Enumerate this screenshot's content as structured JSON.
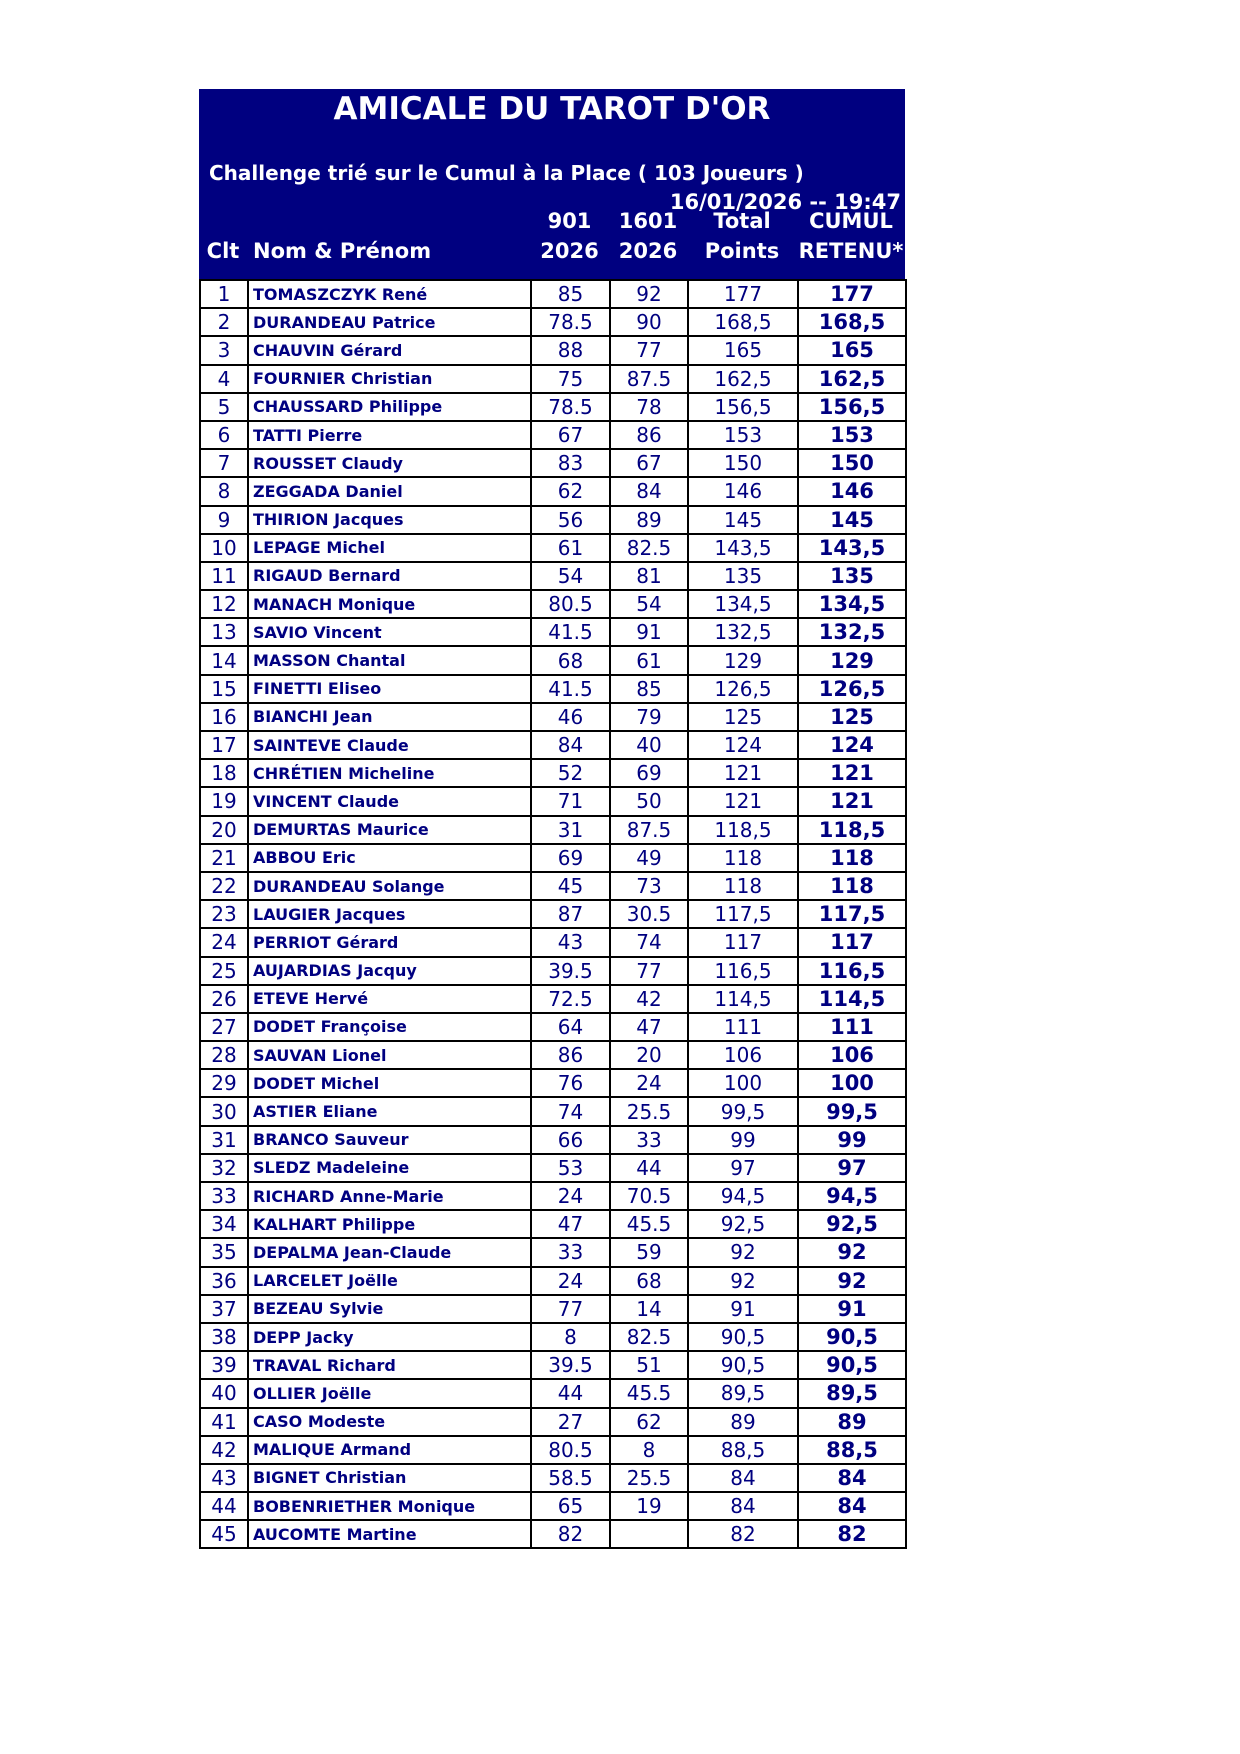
{
  "title": "AMICALE DU TAROT D'OR",
  "subtitle": "Challenge trié sur le Cumul à la Place ( 103 Joueurs )",
  "datetime": "16/01/2026 -- 19:47",
  "columns": {
    "rank": "Clt",
    "name": "Nom & Prénom",
    "c1_line1": "901",
    "c1_line2": "2026",
    "c2_line1": "1601",
    "c2_line2": "2026",
    "total_line1": "Total",
    "total_line2": "Points",
    "cumul_line1": "CUMUL",
    "cumul_line2": "RETENU*"
  },
  "rows": [
    [
      "1",
      "TOMASZCZYK René",
      "85",
      "92",
      "177",
      "177"
    ],
    [
      "2",
      "DURANDEAU Patrice",
      "78.5",
      "90",
      "168,5",
      "168,5"
    ],
    [
      "3",
      "CHAUVIN Gérard",
      "88",
      "77",
      "165",
      "165"
    ],
    [
      "4",
      "FOURNIER Christian",
      "75",
      "87.5",
      "162,5",
      "162,5"
    ],
    [
      "5",
      "CHAUSSARD Philippe",
      "78.5",
      "78",
      "156,5",
      "156,5"
    ],
    [
      "6",
      "TATTI Pierre",
      "67",
      "86",
      "153",
      "153"
    ],
    [
      "7",
      "ROUSSET Claudy",
      "83",
      "67",
      "150",
      "150"
    ],
    [
      "8",
      "ZEGGADA Daniel",
      "62",
      "84",
      "146",
      "146"
    ],
    [
      "9",
      "THIRION Jacques",
      "56",
      "89",
      "145",
      "145"
    ],
    [
      "10",
      "LEPAGE Michel",
      "61",
      "82.5",
      "143,5",
      "143,5"
    ],
    [
      "11",
      "RIGAUD Bernard",
      "54",
      "81",
      "135",
      "135"
    ],
    [
      "12",
      "MANACH Monique",
      "80.5",
      "54",
      "134,5",
      "134,5"
    ],
    [
      "13",
      "SAVIO Vincent",
      "41.5",
      "91",
      "132,5",
      "132,5"
    ],
    [
      "14",
      "MASSON Chantal",
      "68",
      "61",
      "129",
      "129"
    ],
    [
      "15",
      "FINETTI Eliseo",
      "41.5",
      "85",
      "126,5",
      "126,5"
    ],
    [
      "16",
      "BIANCHI Jean",
      "46",
      "79",
      "125",
      "125"
    ],
    [
      "17",
      "SAINTEVE Claude",
      "84",
      "40",
      "124",
      "124"
    ],
    [
      "18",
      "CHRÉTIEN Micheline",
      "52",
      "69",
      "121",
      "121"
    ],
    [
      "19",
      "VINCENT Claude",
      "71",
      "50",
      "121",
      "121"
    ],
    [
      "20",
      "DEMURTAS Maurice",
      "31",
      "87.5",
      "118,5",
      "118,5"
    ],
    [
      "21",
      "ABBOU Eric",
      "69",
      "49",
      "118",
      "118"
    ],
    [
      "22",
      "DURANDEAU Solange",
      "45",
      "73",
      "118",
      "118"
    ],
    [
      "23",
      "LAUGIER Jacques",
      "87",
      "30.5",
      "117,5",
      "117,5"
    ],
    [
      "24",
      "PERRIOT Gérard",
      "43",
      "74",
      "117",
      "117"
    ],
    [
      "25",
      "AUJARDIAS Jacquy",
      "39.5",
      "77",
      "116,5",
      "116,5"
    ],
    [
      "26",
      "ETEVE Hervé",
      "72.5",
      "42",
      "114,5",
      "114,5"
    ],
    [
      "27",
      "DODET Françoise",
      "64",
      "47",
      "111",
      "111"
    ],
    [
      "28",
      "SAUVAN Lionel",
      "86",
      "20",
      "106",
      "106"
    ],
    [
      "29",
      "DODET Michel",
      "76",
      "24",
      "100",
      "100"
    ],
    [
      "30",
      "ASTIER Eliane",
      "74",
      "25.5",
      "99,5",
      "99,5"
    ],
    [
      "31",
      "BRANCO Sauveur",
      "66",
      "33",
      "99",
      "99"
    ],
    [
      "32",
      "SLEDZ Madeleine",
      "53",
      "44",
      "97",
      "97"
    ],
    [
      "33",
      "RICHARD Anne-Marie",
      "24",
      "70.5",
      "94,5",
      "94,5"
    ],
    [
      "34",
      "KALHART Philippe",
      "47",
      "45.5",
      "92,5",
      "92,5"
    ],
    [
      "35",
      "DEPALMA Jean-Claude",
      "33",
      "59",
      "92",
      "92"
    ],
    [
      "36",
      "LARCELET Joëlle",
      "24",
      "68",
      "92",
      "92"
    ],
    [
      "37",
      "BEZEAU Sylvie",
      "77",
      "14",
      "91",
      "91"
    ],
    [
      "38",
      "DEPP Jacky",
      "8",
      "82.5",
      "90,5",
      "90,5"
    ],
    [
      "39",
      "TRAVAL Richard",
      "39.5",
      "51",
      "90,5",
      "90,5"
    ],
    [
      "40",
      "OLLIER Joëlle",
      "44",
      "45.5",
      "89,5",
      "89,5"
    ],
    [
      "41",
      "CASO Modeste",
      "27",
      "62",
      "89",
      "89"
    ],
    [
      "42",
      "MALIQUE Armand",
      "80.5",
      "8",
      "88,5",
      "88,5"
    ],
    [
      "43",
      "BIGNET Christian",
      "58.5",
      "25.5",
      "84",
      "84"
    ],
    [
      "44",
      "BOBENRIETHER Monique",
      "65",
      "19",
      "84",
      "84"
    ],
    [
      "45",
      "AUCOMTE Martine",
      "82",
      "",
      "82",
      "82"
    ]
  ],
  "colors": {
    "header_bg": "#000080",
    "header_text": "#ffffff",
    "text": "#000080"
  }
}
